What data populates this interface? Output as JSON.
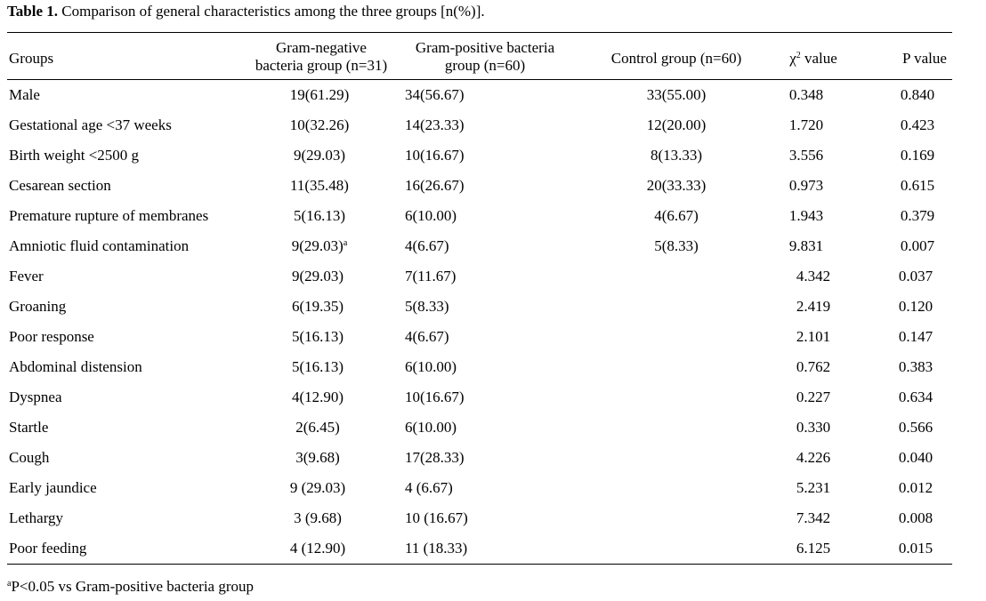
{
  "caption": {
    "label": "Table 1.",
    "text": "Comparison of general characteristics among the three groups [n(%)]."
  },
  "columns": {
    "groups": "Groups",
    "gram_negative_line1": "Gram-negative",
    "gram_negative_line2": "bacteria group (n=31)",
    "gram_positive_line1": "Gram-positive bacteria",
    "gram_positive_line2": "group (n=60)",
    "control": "Control group (n=60)",
    "chi_prefix": "χ",
    "chi_sup": "2",
    "chi_suffix": " value",
    "p": "P value"
  },
  "rows": [
    {
      "label": "Male",
      "gn": "19(61.29)",
      "gn_sup": "",
      "gp": "34(56.67)",
      "ctrl": "33(55.00)",
      "chi": "0.348",
      "p": "0.840"
    },
    {
      "label": "Gestational age <37 weeks",
      "gn": "10(32.26)",
      "gn_sup": "",
      "gp": "14(23.33)",
      "ctrl": "12(20.00)",
      "chi": "1.720",
      "p": "0.423"
    },
    {
      "label": "Birth weight <2500 g",
      "gn": "9(29.03)",
      "gn_sup": "",
      "gp": "10(16.67)",
      "ctrl": "8(13.33)",
      "chi": "3.556",
      "p": "0.169"
    },
    {
      "label": "Cesarean section",
      "gn": "11(35.48)",
      "gn_sup": "",
      "gp": "16(26.67)",
      "ctrl": "20(33.33)",
      "chi": "0.973",
      "p": "0.615"
    },
    {
      "label": "Premature rupture of membranes",
      "gn": "5(16.13)",
      "gn_sup": "",
      "gp": "6(10.00)",
      "ctrl": "4(6.67)",
      "chi": "1.943",
      "p": "0.379"
    },
    {
      "label": "Amniotic fluid contamination",
      "gn": "9(29.03)",
      "gn_sup": "a",
      "gp": "4(6.67)",
      "ctrl": "5(8.33)",
      "chi": "9.831",
      "p": "0.007"
    },
    {
      "label": "Fever",
      "gn": "9(29.03)",
      "gn_sup": "",
      "gp": "7(11.67)",
      "ctrl": "",
      "chi": "4.342",
      "p": "0.037"
    },
    {
      "label": "Groaning",
      "gn": "6(19.35)",
      "gn_sup": "",
      "gp": "5(8.33)",
      "ctrl": "",
      "chi": "2.419",
      "p": "0.120"
    },
    {
      "label": "Poor response",
      "gn": "5(16.13)",
      "gn_sup": "",
      "gp": "4(6.67)",
      "ctrl": "",
      "chi": "2.101",
      "p": "0.147"
    },
    {
      "label": "Abdominal distension",
      "gn": "5(16.13)",
      "gn_sup": "",
      "gp": "6(10.00)",
      "ctrl": "",
      "chi": "0.762",
      "p": "0.383"
    },
    {
      "label": "Dyspnea",
      "gn": "4(12.90)",
      "gn_sup": "",
      "gp": "10(16.67)",
      "ctrl": "",
      "chi": "0.227",
      "p": "0.634"
    },
    {
      "label": "Startle",
      "gn": "2(6.45)",
      "gn_sup": "",
      "gp": "6(10.00)",
      "ctrl": "",
      "chi": "0.330",
      "p": "0.566"
    },
    {
      "label": "Cough",
      "gn": "3(9.68)",
      "gn_sup": "",
      "gp": "17(28.33)",
      "ctrl": "",
      "chi": "4.226",
      "p": "0.040"
    },
    {
      "label": "Early jaundice",
      "gn": "9 (29.03)",
      "gn_sup": "",
      "gp": "4 (6.67)",
      "ctrl": "",
      "chi": "5.231",
      "p": "0.012"
    },
    {
      "label": "Lethargy",
      "gn": "3 (9.68)",
      "gn_sup": "",
      "gp": "10 (16.67)",
      "ctrl": "",
      "chi": "7.342",
      "p": "0.008"
    },
    {
      "label": "Poor feeding",
      "gn": "4 (12.90)",
      "gn_sup": "",
      "gp": "11 (18.33)",
      "ctrl": "",
      "chi": "6.125",
      "p": "0.015"
    }
  ],
  "footnote": {
    "sup": "a",
    "text": "P<0.05 vs Gram-positive bacteria group"
  }
}
